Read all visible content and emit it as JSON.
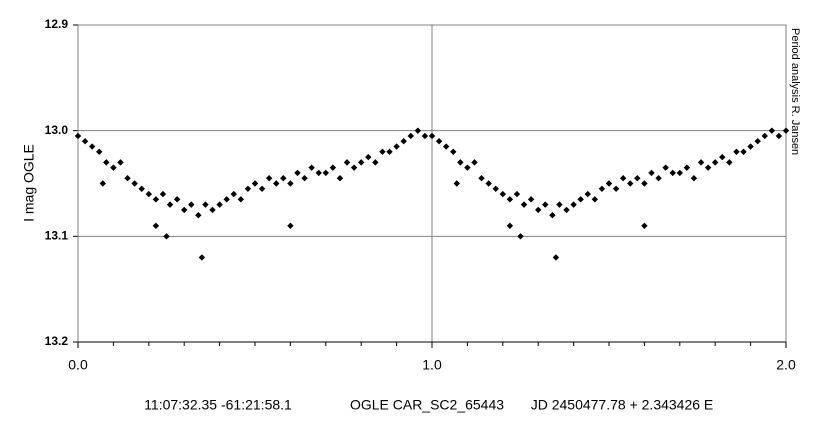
{
  "chart_data": {
    "type": "scatter",
    "y_label": "I mag OGLE",
    "side_note": "Period analysis  R. Jansen",
    "annotations": [
      "11:07:32.35 -61:21:58.1",
      "OGLE CAR_SC2_65443",
      "JD 2450477.78 + 2.343426 E"
    ],
    "xlim": [
      0,
      2
    ],
    "ylim": [
      13.2,
      12.9
    ],
    "y_inverted": true,
    "grid": true,
    "color": "#000000",
    "marker": "diamond",
    "xticks": [
      {
        "value": 0,
        "label": "0.0"
      },
      {
        "value": 1,
        "label": "1.0"
      },
      {
        "value": 2,
        "label": "2.0"
      }
    ],
    "xminorticks": [
      0.1,
      0.2,
      0.3,
      0.4,
      0.5,
      0.6,
      0.7,
      0.8,
      0.9,
      1.1,
      1.2,
      1.3,
      1.4,
      1.5,
      1.6,
      1.7,
      1.8,
      1.9
    ],
    "yticks": [
      12.9,
      {
        "value": 13,
        "label": "13.0"
      },
      13.1,
      13.2
    ],
    "series": [
      {
        "name": "I",
        "color": "#000000",
        "x": [
          0.0,
          0.02,
          0.04,
          0.06,
          0.08,
          0.1,
          0.12,
          0.14,
          0.16,
          0.18,
          0.2,
          0.22,
          0.24,
          0.26,
          0.28,
          0.3,
          0.32,
          0.34,
          0.36,
          0.38,
          0.4,
          0.42,
          0.44,
          0.46,
          0.48,
          0.5,
          0.52,
          0.54,
          0.56,
          0.58,
          0.6,
          0.62,
          0.64,
          0.66,
          0.68,
          0.7,
          0.72,
          0.74,
          0.76,
          0.78,
          0.8,
          0.82,
          0.84,
          0.86,
          0.88,
          0.9,
          0.92,
          0.94,
          0.96,
          0.98,
          0.35,
          0.22,
          0.6,
          0.25,
          0.07,
          1.0,
          1.02,
          1.04,
          1.06,
          1.08,
          1.1,
          1.12,
          1.14,
          1.16,
          1.18,
          1.2,
          1.22,
          1.24,
          1.26,
          1.28,
          1.3,
          1.32,
          1.34,
          1.36,
          1.38,
          1.4,
          1.42,
          1.44,
          1.46,
          1.48,
          1.5,
          1.52,
          1.54,
          1.56,
          1.58,
          1.6,
          1.62,
          1.64,
          1.66,
          1.68,
          1.7,
          1.72,
          1.74,
          1.76,
          1.78,
          1.8,
          1.82,
          1.84,
          1.86,
          1.88,
          1.9,
          1.92,
          1.94,
          1.96,
          1.98,
          1.35,
          1.22,
          1.6,
          1.25,
          1.07,
          2.0
        ],
        "values": [
          13.005,
          13.01,
          13.015,
          13.02,
          13.03,
          13.035,
          13.03,
          13.045,
          13.05,
          13.055,
          13.06,
          13.065,
          13.06,
          13.07,
          13.065,
          13.075,
          13.07,
          13.08,
          13.07,
          13.075,
          13.07,
          13.065,
          13.06,
          13.065,
          13.055,
          13.05,
          13.055,
          13.045,
          13.05,
          13.045,
          13.05,
          13.04,
          13.045,
          13.035,
          13.04,
          13.04,
          13.035,
          13.045,
          13.03,
          13.035,
          13.03,
          13.025,
          13.03,
          13.02,
          13.02,
          13.015,
          13.01,
          13.005,
          13.0,
          13.005,
          13.12,
          13.09,
          13.09,
          13.1,
          13.05,
          13.005,
          13.01,
          13.015,
          13.02,
          13.03,
          13.035,
          13.03,
          13.045,
          13.05,
          13.055,
          13.06,
          13.065,
          13.06,
          13.07,
          13.065,
          13.075,
          13.07,
          13.08,
          13.07,
          13.075,
          13.07,
          13.065,
          13.06,
          13.065,
          13.055,
          13.05,
          13.055,
          13.045,
          13.05,
          13.045,
          13.05,
          13.04,
          13.045,
          13.035,
          13.04,
          13.04,
          13.035,
          13.045,
          13.03,
          13.035,
          13.03,
          13.025,
          13.03,
          13.02,
          13.02,
          13.015,
          13.01,
          13.005,
          13.0,
          13.005,
          13.12,
          13.09,
          13.09,
          13.1,
          13.05,
          13.0
        ]
      }
    ]
  }
}
